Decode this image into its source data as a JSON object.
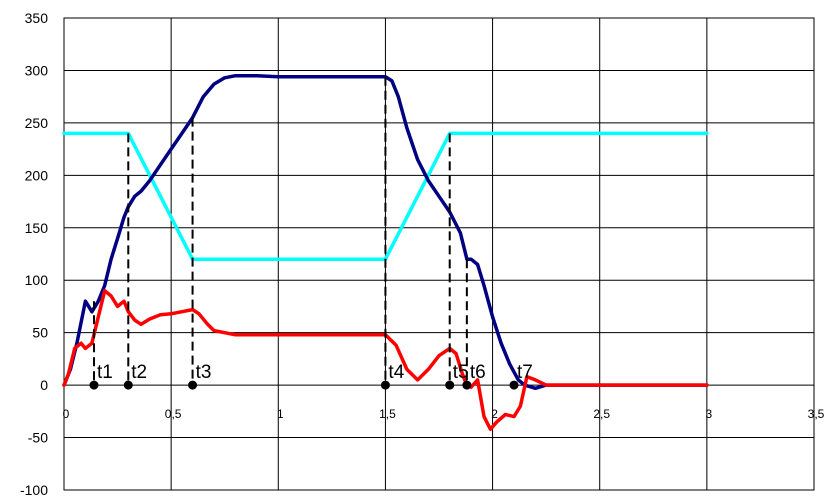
{
  "chart_data": {
    "type": "line",
    "title": "",
    "xlabel": "",
    "ylabel": "",
    "xlim": [
      0,
      3.5
    ],
    "ylim": [
      -100,
      350
    ],
    "x_ticks": [
      0,
      0.5,
      1,
      1.5,
      2,
      2.5,
      3,
      3.5
    ],
    "x_tick_labels": [
      "0",
      "0,5",
      "1",
      "1,5",
      "2",
      "2,5",
      "3",
      "3,5"
    ],
    "y_ticks": [
      -100,
      -50,
      0,
      50,
      100,
      150,
      200,
      250,
      300,
      350
    ],
    "y_tick_labels": [
      "-100",
      "-50",
      "0",
      "50",
      "100",
      "150",
      "200",
      "250",
      "300",
      "350"
    ],
    "grid": true,
    "legend": "none",
    "series": [
      {
        "color": "#00ffff",
        "x": [
          0,
          0.3,
          0.6,
          1.5,
          1.8,
          3.0
        ],
        "y": [
          240,
          240,
          120,
          120,
          240,
          240
        ]
      },
      {
        "color": "#000080",
        "x": [
          0,
          0.03,
          0.06,
          0.1,
          0.13,
          0.16,
          0.19,
          0.22,
          0.25,
          0.28,
          0.3,
          0.33,
          0.36,
          0.4,
          0.45,
          0.5,
          0.55,
          0.6,
          0.65,
          0.7,
          0.75,
          0.8,
          0.85,
          0.9,
          1.0,
          1.1,
          1.2,
          1.3,
          1.4,
          1.5,
          1.53,
          1.56,
          1.6,
          1.65,
          1.7,
          1.75,
          1.8,
          1.85,
          1.88,
          1.9,
          1.93,
          1.96,
          2.0,
          2.04,
          2.08,
          2.12,
          2.15,
          2.2,
          2.25,
          2.3,
          3.0
        ],
        "y": [
          0,
          15,
          40,
          80,
          70,
          80,
          95,
          120,
          140,
          160,
          170,
          180,
          185,
          195,
          210,
          225,
          240,
          255,
          275,
          287,
          293,
          295,
          295,
          295,
          294,
          294,
          294,
          294,
          294,
          294,
          290,
          275,
          245,
          215,
          195,
          180,
          165,
          145,
          120,
          120,
          115,
          95,
          65,
          40,
          20,
          5,
          0,
          -3,
          0,
          0,
          0
        ]
      },
      {
        "color": "#ff0000",
        "x": [
          0,
          0.02,
          0.05,
          0.08,
          0.1,
          0.13,
          0.16,
          0.19,
          0.22,
          0.25,
          0.28,
          0.3,
          0.33,
          0.36,
          0.4,
          0.45,
          0.5,
          0.55,
          0.6,
          0.63,
          0.67,
          0.7,
          0.75,
          0.8,
          0.9,
          1.0,
          1.2,
          1.5,
          1.55,
          1.6,
          1.65,
          1.7,
          1.75,
          1.8,
          1.83,
          1.86,
          1.88,
          1.9,
          1.93,
          1.96,
          1.99,
          2.02,
          2.06,
          2.1,
          2.13,
          2.16,
          2.2,
          2.25,
          2.3,
          3.0
        ],
        "y": [
          0,
          10,
          35,
          40,
          35,
          40,
          65,
          90,
          85,
          75,
          80,
          70,
          62,
          58,
          63,
          67,
          68,
          70,
          72,
          68,
          58,
          52,
          50,
          48,
          48,
          48,
          48,
          48,
          38,
          15,
          5,
          15,
          28,
          35,
          30,
          10,
          0,
          -2,
          5,
          -30,
          -42,
          -35,
          -28,
          -30,
          -20,
          8,
          5,
          0,
          0,
          0
        ]
      }
    ],
    "markers": [
      {
        "label": "t1",
        "x": 0.14,
        "top": 80
      },
      {
        "label": "t2",
        "x": 0.3,
        "top": 240
      },
      {
        "label": "t3",
        "x": 0.6,
        "top": 255
      },
      {
        "label": "t4",
        "x": 1.5,
        "top": 294
      },
      {
        "label": "t5",
        "x": 1.8,
        "top": 240
      },
      {
        "label": "t6",
        "x": 1.88,
        "top": 120
      },
      {
        "label": "t7",
        "x": 2.1,
        "top": null
      }
    ]
  }
}
